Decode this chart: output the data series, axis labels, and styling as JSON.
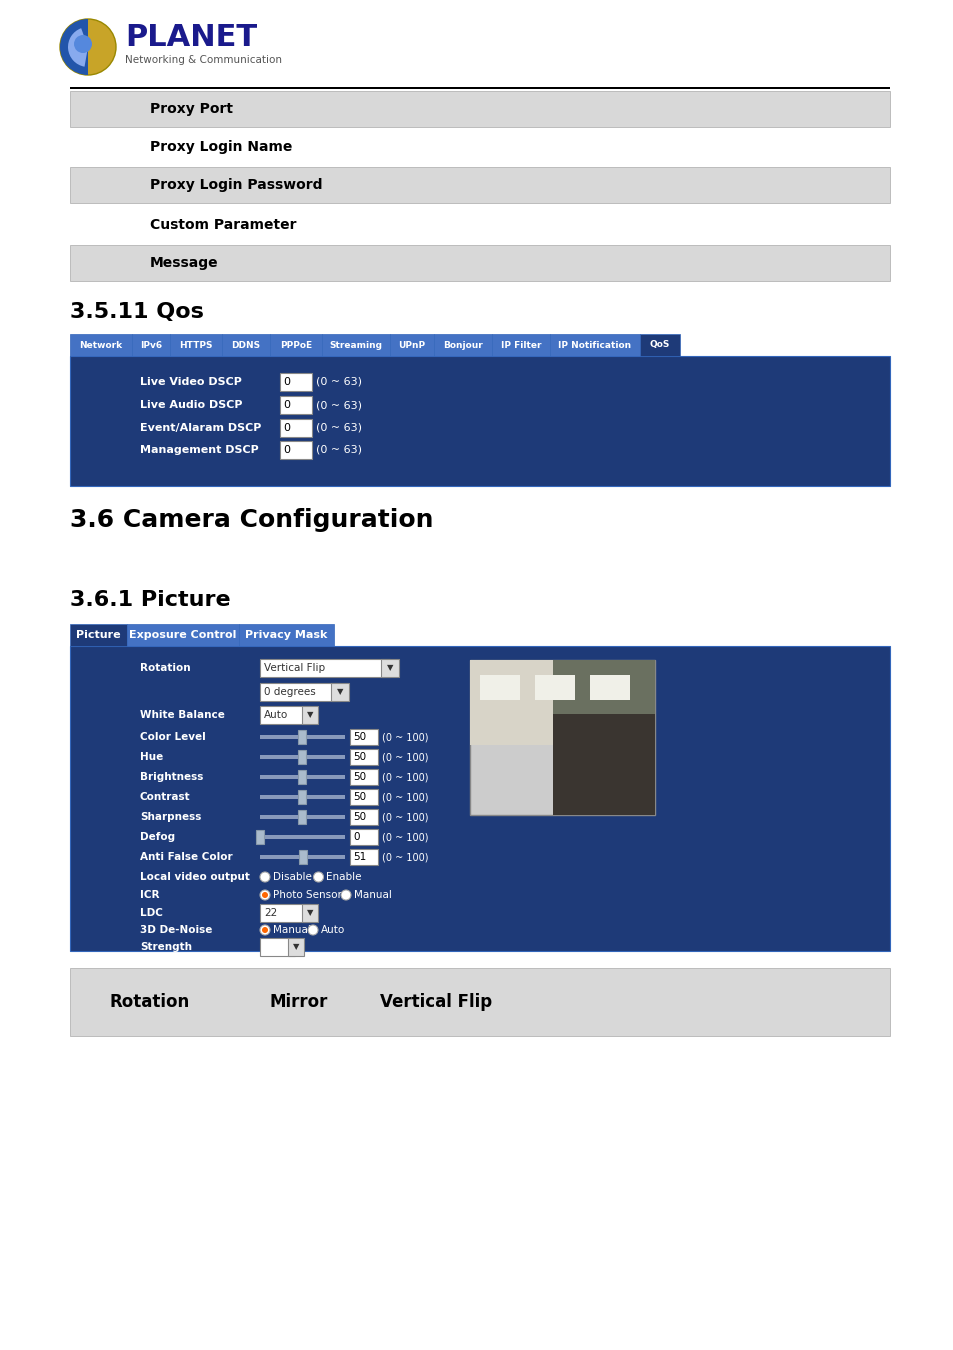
{
  "page_bg": "#ffffff",
  "logo_text": "PLANET",
  "logo_subtitle": "Networking & Communication",
  "top_rows": [
    {
      "text": "Proxy Port",
      "shaded": true
    },
    {
      "text": "Proxy Login Name",
      "shaded": false
    },
    {
      "text": "Proxy Login Password",
      "shaded": true
    },
    {
      "text": "Custom Parameter",
      "shaded": false
    },
    {
      "text": "Message",
      "shaded": true
    }
  ],
  "section_qos_title": "3.5.11 Qos",
  "nav_tabs": [
    "Network",
    "IPv6",
    "HTTPS",
    "DDNS",
    "PPPoE",
    "Streaming",
    "UPnP",
    "Bonjour",
    "IP Filter",
    "IP Notification",
    "QoS"
  ],
  "nav_active": "QoS",
  "nav_bg": "#4472c4",
  "nav_active_bg": "#1e3a78",
  "qos_panel_bg": "#1e3a78",
  "qos_fields": [
    {
      "label": "Live Video DSCP",
      "value": "0",
      "range": "(0 ~ 63)"
    },
    {
      "label": "Live Audio DSCP",
      "value": "0",
      "range": "(0 ~ 63)"
    },
    {
      "label": "Event/Alaram DSCP",
      "value": "0",
      "range": "(0 ~ 63)"
    },
    {
      "label": "Management DSCP",
      "value": "0",
      "range": "(0 ~ 63)"
    }
  ],
  "section_camera_title": "3.6 Camera Configuration",
  "section_picture_title": "3.6.1 Picture",
  "picture_tabs": [
    "Picture",
    "Exposure Control",
    "Privacy Mask"
  ],
  "picture_tab_active": "Picture",
  "picture_panel_bg": "#1e3a78",
  "bottom_row_label": "Rotation",
  "bottom_row_options": [
    "Mirror",
    "Vertical Flip"
  ],
  "shaded_row_bg": "#d8d8d8",
  "border_color": "#aaaaaa",
  "input_bg": "#ffffff",
  "slider_left_color": "#9999bb",
  "slider_right_color": "#ccccdd",
  "thumb_color": "#aaaacc",
  "nav_tab_widths": [
    62,
    38,
    52,
    48,
    52,
    68,
    44,
    58,
    58,
    90,
    40
  ]
}
